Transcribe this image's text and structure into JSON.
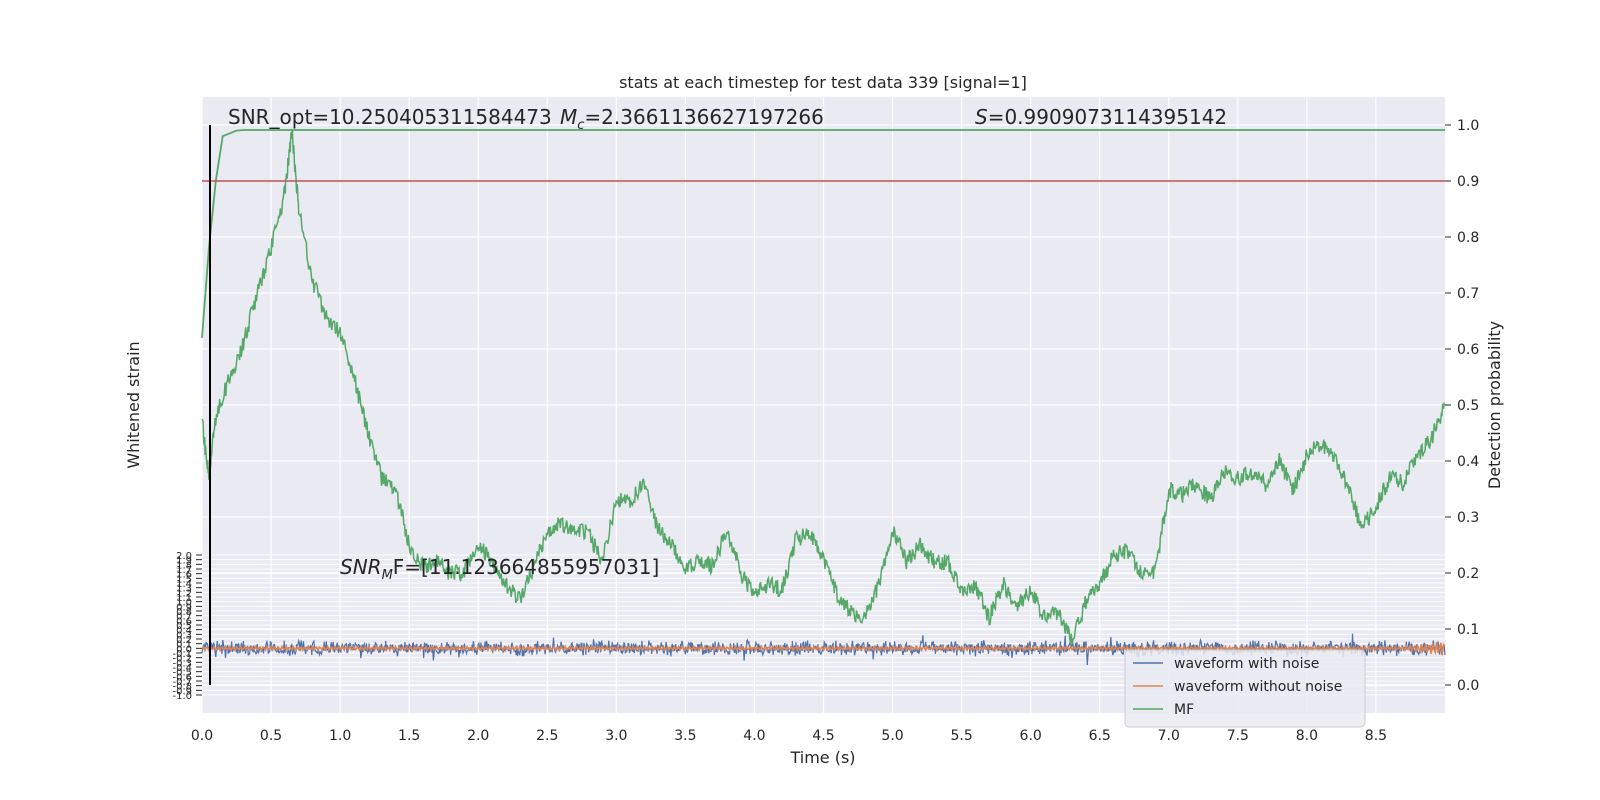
{
  "chart_data": {
    "type": "line",
    "title": "stats at each timestep for test data 339 [signal=1]",
    "xlabel": "Time (s)",
    "ylabel_left": "Whitened strain",
    "ylabel_right": "Detection probability",
    "xlim": [
      0.0,
      9.0
    ],
    "xticks": [
      "0.0",
      "0.5",
      "1.0",
      "1.5",
      "2.0",
      "2.5",
      "3.0",
      "3.5",
      "4.0",
      "4.5",
      "5.0",
      "5.5",
      "6.0",
      "6.5",
      "7.0",
      "7.5",
      "8.0",
      "8.5"
    ],
    "right_ylim": [
      -0.05,
      1.05
    ],
    "right_yticks": [
      "0.0",
      "0.1",
      "0.2",
      "0.3",
      "0.4",
      "0.5",
      "0.6",
      "0.7",
      "0.8",
      "0.9",
      "1.0"
    ],
    "left_ylim": [
      -1.0,
      2.0
    ],
    "left_yticks": [
      "-1.0",
      "-0.9",
      "-0.8",
      "-0.7",
      "-0.6",
      "-0.5",
      "-0.4",
      "-0.3",
      "-0.2",
      "-0.1",
      "0.0",
      "0.1",
      "0.2",
      "0.3",
      "0.4",
      "0.5",
      "0.6",
      "0.7",
      "0.8",
      "0.9",
      "1.0",
      "1.1",
      "1.2",
      "1.3",
      "1.4",
      "1.5",
      "1.6",
      "1.7",
      "1.8",
      "1.9",
      "2.0"
    ],
    "threshold": 0.9,
    "annotations": {
      "snr_opt": "SNR_opt=10.250405311584473",
      "mc_symbol": "M",
      "mc_sub": "c",
      "mc_value": "=2.3661136627197266",
      "s_symbol": "S",
      "s_value": "=0.9909073114395142",
      "snr_mf_symbol": "SNR",
      "snr_mf_sub": "M",
      "snr_mf_value": "F=[11.123664855957031]"
    },
    "series": [
      {
        "name": "waveform with noise",
        "color": "#4c72b0",
        "kind": "strain_noise",
        "amplitude": 0.12,
        "center": 0.0
      },
      {
        "name": "waveform without noise",
        "color": "#dd8452",
        "kind": "strain_clean",
        "amplitude": 0.04,
        "center": 0.0
      },
      {
        "name": "MF",
        "color": "#55a868",
        "kind": "mf",
        "x": [
          0.0,
          0.05,
          0.1,
          0.2,
          0.3,
          0.4,
          0.5,
          0.6,
          0.65,
          0.7,
          0.8,
          0.9,
          1.0,
          1.1,
          1.2,
          1.3,
          1.4,
          1.5,
          1.6,
          1.7,
          1.8,
          1.9,
          2.0,
          2.1,
          2.2,
          2.3,
          2.4,
          2.5,
          2.6,
          2.7,
          2.8,
          2.9,
          3.0,
          3.1,
          3.2,
          3.3,
          3.4,
          3.5,
          3.6,
          3.7,
          3.8,
          3.9,
          4.0,
          4.1,
          4.2,
          4.3,
          4.4,
          4.5,
          4.6,
          4.7,
          4.8,
          4.9,
          5.0,
          5.1,
          5.2,
          5.3,
          5.4,
          5.5,
          5.6,
          5.7,
          5.8,
          5.9,
          6.0,
          6.1,
          6.2,
          6.3,
          6.4,
          6.5,
          6.6,
          6.7,
          6.8,
          6.9,
          7.0,
          7.1,
          7.2,
          7.3,
          7.4,
          7.5,
          7.6,
          7.7,
          7.8,
          7.9,
          8.0,
          8.1,
          8.2,
          8.3,
          8.4,
          8.5,
          8.6,
          8.7,
          8.8,
          8.9,
          9.0
        ],
        "y": [
          0.47,
          0.37,
          0.48,
          0.55,
          0.61,
          0.7,
          0.78,
          0.88,
          0.99,
          0.85,
          0.72,
          0.66,
          0.63,
          0.55,
          0.45,
          0.37,
          0.35,
          0.25,
          0.21,
          0.22,
          0.2,
          0.2,
          0.25,
          0.22,
          0.18,
          0.15,
          0.21,
          0.27,
          0.29,
          0.28,
          0.27,
          0.22,
          0.33,
          0.33,
          0.36,
          0.28,
          0.25,
          0.21,
          0.22,
          0.21,
          0.28,
          0.2,
          0.16,
          0.18,
          0.17,
          0.26,
          0.27,
          0.22,
          0.16,
          0.13,
          0.12,
          0.18,
          0.28,
          0.22,
          0.25,
          0.22,
          0.22,
          0.17,
          0.18,
          0.12,
          0.18,
          0.14,
          0.17,
          0.12,
          0.13,
          0.08,
          0.15,
          0.18,
          0.23,
          0.24,
          0.2,
          0.2,
          0.35,
          0.34,
          0.36,
          0.33,
          0.38,
          0.37,
          0.38,
          0.36,
          0.4,
          0.35,
          0.41,
          0.43,
          0.41,
          0.35,
          0.28,
          0.32,
          0.37,
          0.36,
          0.41,
          0.44,
          0.5
        ]
      },
      {
        "name": "detection probability",
        "color": "#55a868",
        "kind": "prob",
        "x": [
          0.0,
          0.05,
          0.1,
          0.15,
          0.2,
          0.25,
          0.3,
          0.4,
          0.5,
          0.6,
          1.0,
          2.0,
          3.0,
          4.0,
          5.0,
          6.0,
          7.0,
          8.0,
          9.0
        ],
        "y": [
          0.62,
          0.78,
          0.9,
          0.98,
          0.985,
          0.99,
          0.991,
          0.991,
          0.991,
          0.991,
          0.991,
          0.991,
          0.991,
          0.991,
          0.991,
          0.991,
          0.991,
          0.991,
          0.991
        ]
      }
    ],
    "legend": {
      "placement": "lower-right",
      "entries": [
        "waveform with noise",
        "waveform without noise",
        "MF"
      ]
    }
  }
}
